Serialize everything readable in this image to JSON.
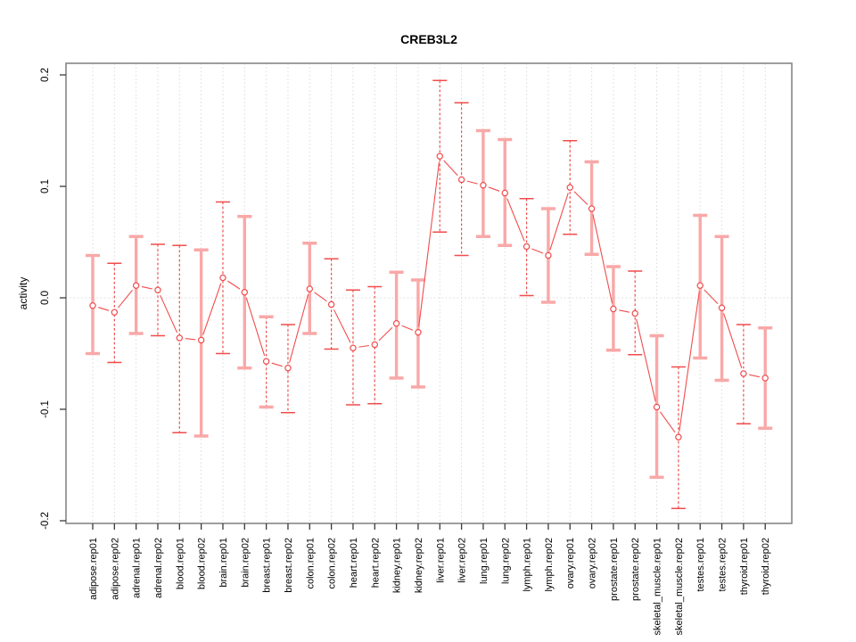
{
  "figure": {
    "title": "CREB3L2",
    "ylabel": "activity"
  },
  "chart_data": {
    "type": "line",
    "subtype": "points-with-error-bars",
    "title": "CREB3L2",
    "xlabel": "",
    "ylabel": "activity",
    "ylim": [
      -0.203,
      0.211
    ],
    "yticks": [
      0.2,
      0.1,
      0.0,
      -0.1,
      -0.2
    ],
    "ytick_labels": [
      "0.2",
      "0.1",
      "0.0",
      "-0.1",
      "-0.2"
    ],
    "grid": "vertical-dotted-at-each-category-plus-dotted-zero-line",
    "legend": "none",
    "marker": "open-circle",
    "categories": [
      "adipose.rep01",
      "adipose.rep02",
      "adrenal.rep01",
      "adrenal.rep02",
      "blood.rep01",
      "blood.rep02",
      "brain.rep01",
      "brain.rep02",
      "breast.rep01",
      "breast.rep02",
      "colon.rep01",
      "colon.rep02",
      "heart.rep01",
      "heart.rep02",
      "kidney.rep01",
      "kidney.rep02",
      "liver.rep01",
      "liver.rep02",
      "lung.rep01",
      "lung.rep02",
      "lymph.rep01",
      "lymph.rep02",
      "ovary.rep01",
      "ovary.rep02",
      "prostate.rep01",
      "prostate.rep02",
      "skeletal_muscle.rep01",
      "skeletal_muscle.rep02",
      "testes.rep01",
      "testes.rep02",
      "thyroid.rep01",
      "thyroid.rep02"
    ],
    "series": [
      {
        "name": "activity",
        "points": [
          {
            "label": "adipose.rep01",
            "value": -0.007,
            "lo": -0.05,
            "hi": 0.038,
            "style": "solid"
          },
          {
            "label": "adipose.rep02",
            "value": -0.013,
            "lo": -0.058,
            "hi": 0.031,
            "style": "dashed"
          },
          {
            "label": "adrenal.rep01",
            "value": 0.011,
            "lo": -0.032,
            "hi": 0.055,
            "style": "solid"
          },
          {
            "label": "adrenal.rep02",
            "value": 0.007,
            "lo": -0.034,
            "hi": 0.048,
            "style": "dashed"
          },
          {
            "label": "blood.rep01",
            "value": -0.036,
            "lo": -0.121,
            "hi": 0.047,
            "style": "dashed"
          },
          {
            "label": "blood.rep02",
            "value": -0.038,
            "lo": -0.124,
            "hi": 0.043,
            "style": "solid"
          },
          {
            "label": "brain.rep01",
            "value": 0.018,
            "lo": -0.05,
            "hi": 0.086,
            "style": "dashed"
          },
          {
            "label": "brain.rep02",
            "value": 0.005,
            "lo": -0.063,
            "hi": 0.073,
            "style": "solid"
          },
          {
            "label": "breast.rep01",
            "value": -0.057,
            "lo": -0.098,
            "hi": -0.017,
            "style": "mixed"
          },
          {
            "label": "breast.rep02",
            "value": -0.063,
            "lo": -0.103,
            "hi": -0.024,
            "style": "dashed"
          },
          {
            "label": "colon.rep01",
            "value": 0.008,
            "lo": -0.032,
            "hi": 0.049,
            "style": "solid"
          },
          {
            "label": "colon.rep02",
            "value": -0.006,
            "lo": -0.046,
            "hi": 0.035,
            "style": "dashed"
          },
          {
            "label": "heart.rep01",
            "value": -0.045,
            "lo": -0.096,
            "hi": 0.007,
            "style": "dashed"
          },
          {
            "label": "heart.rep02",
            "value": -0.042,
            "lo": -0.095,
            "hi": 0.01,
            "style": "dashed"
          },
          {
            "label": "kidney.rep01",
            "value": -0.023,
            "lo": -0.072,
            "hi": 0.023,
            "style": "solid"
          },
          {
            "label": "kidney.rep02",
            "value": -0.031,
            "lo": -0.08,
            "hi": 0.016,
            "style": "solid"
          },
          {
            "label": "liver.rep01",
            "value": 0.127,
            "lo": 0.059,
            "hi": 0.195,
            "style": "dashed"
          },
          {
            "label": "liver.rep02",
            "value": 0.106,
            "lo": 0.038,
            "hi": 0.175,
            "style": "dashed"
          },
          {
            "label": "lung.rep01",
            "value": 0.101,
            "lo": 0.055,
            "hi": 0.15,
            "style": "solid"
          },
          {
            "label": "lung.rep02",
            "value": 0.094,
            "lo": 0.047,
            "hi": 0.142,
            "style": "solid"
          },
          {
            "label": "lymph.rep01",
            "value": 0.046,
            "lo": 0.002,
            "hi": 0.089,
            "style": "dashed"
          },
          {
            "label": "lymph.rep02",
            "value": 0.038,
            "lo": -0.004,
            "hi": 0.08,
            "style": "solid"
          },
          {
            "label": "ovary.rep01",
            "value": 0.099,
            "lo": 0.057,
            "hi": 0.141,
            "style": "dashed"
          },
          {
            "label": "ovary.rep02",
            "value": 0.08,
            "lo": 0.039,
            "hi": 0.122,
            "style": "solid"
          },
          {
            "label": "prostate.rep01",
            "value": -0.01,
            "lo": -0.047,
            "hi": 0.028,
            "style": "solid"
          },
          {
            "label": "prostate.rep02",
            "value": -0.014,
            "lo": -0.051,
            "hi": 0.024,
            "style": "dashed"
          },
          {
            "label": "skeletal_muscle.rep01",
            "value": -0.098,
            "lo": -0.161,
            "hi": -0.034,
            "style": "solid"
          },
          {
            "label": "skeletal_muscle.rep02",
            "value": -0.125,
            "lo": -0.189,
            "hi": -0.062,
            "style": "dashed"
          },
          {
            "label": "testes.rep01",
            "value": 0.011,
            "lo": -0.054,
            "hi": 0.074,
            "style": "solid"
          },
          {
            "label": "testes.rep02",
            "value": -0.009,
            "lo": -0.074,
            "hi": 0.055,
            "style": "solid"
          },
          {
            "label": "thyroid.rep01",
            "value": -0.068,
            "lo": -0.113,
            "hi": -0.024,
            "style": "dashed"
          },
          {
            "label": "thyroid.rep02",
            "value": -0.072,
            "lo": -0.117,
            "hi": -0.027,
            "style": "solid"
          }
        ]
      }
    ],
    "colors": {
      "point_red": "#f14c4c",
      "bar_pink": "#f9a8a8",
      "line_red": "#f14c4c",
      "grid_gray": "#d9d9d9",
      "box_gray": "#858585",
      "tick_black": "#3a3a3a",
      "background": "#ffffff"
    }
  }
}
